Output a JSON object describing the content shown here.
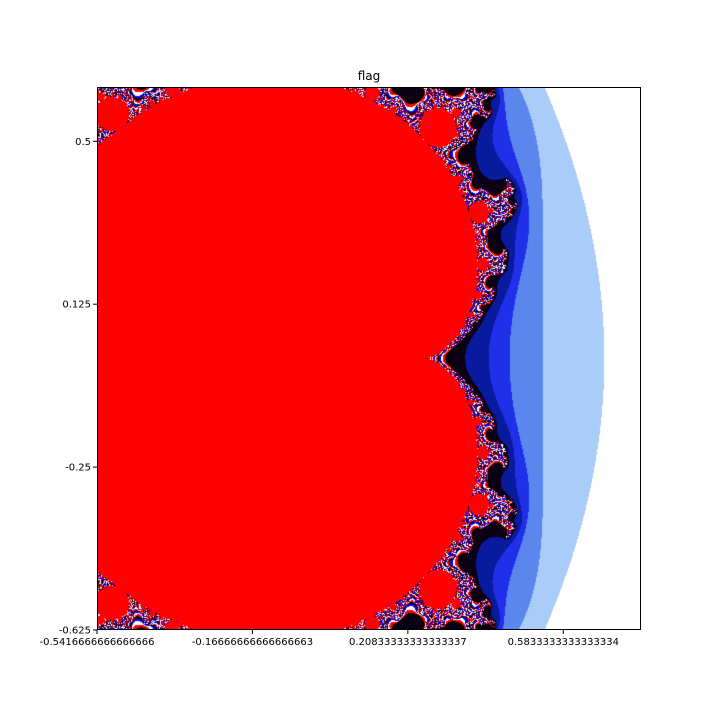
{
  "chart_data": {
    "type": "heatmap",
    "title": "flag",
    "xlabel": "",
    "ylabel": "",
    "colormap_name": "flag",
    "set_color": "#ff0000",
    "colormap": [
      "#0a0014",
      "#081a9e",
      "#2030e8",
      "#5a86ee",
      "#a9ccf8",
      "#ffffff",
      "#fde6c8",
      "#fbb283"
    ],
    "xlim": [
      -0.5416666666666666,
      0.7708333333333334
    ],
    "ylim": [
      -0.625,
      0.625
    ],
    "x_ticks": [
      {
        "value": -0.5416666666666666,
        "label": "-0.5416666666666666"
      },
      {
        "value": -0.16666666666666663,
        "label": "-0.16666666666666663"
      },
      {
        "value": 0.20833333333333337,
        "label": "0.20833333333333337"
      },
      {
        "value": 0.5833333333333334,
        "label": "0.5833333333333334"
      }
    ],
    "y_ticks": [
      {
        "value": 0.5,
        "label": "0.5"
      },
      {
        "value": 0.125,
        "label": "0.125"
      },
      {
        "value": -0.25,
        "label": "-0.25"
      },
      {
        "value": -0.625,
        "label": "-0.625"
      }
    ],
    "grid": false,
    "legend": "none"
  }
}
